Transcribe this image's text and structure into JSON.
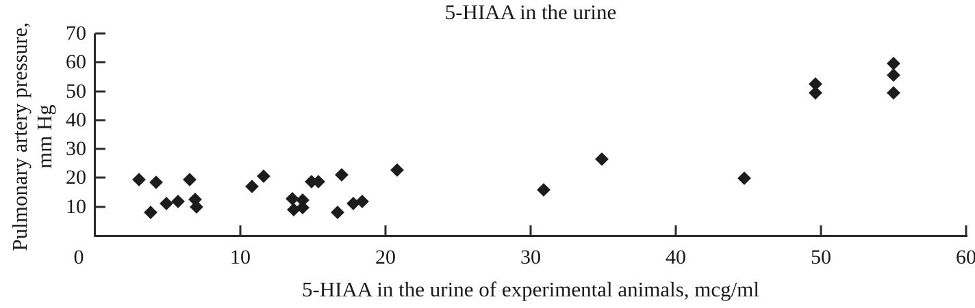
{
  "chart": {
    "title": "5-HIAA in the urine",
    "xlabel": "5-HIAA in the urine of experimental animals, mcg/ml",
    "ylabel_lines": [
      "Pulmonary artery pressure,",
      "mm Hg"
    ]
  },
  "chart_data": {
    "type": "scatter",
    "title": "5-HIAA in the urine",
    "xlabel": "5-HIAA in the urine of experimental animals, mcg/ml",
    "ylabel": "Pulmonary artery pressure, mm Hg",
    "xlim": [
      0,
      60
    ],
    "ylim": [
      0,
      70
    ],
    "xticks": [
      0,
      10,
      20,
      30,
      40,
      50,
      60
    ],
    "yticks": [
      10,
      20,
      30,
      40,
      50,
      60,
      70
    ],
    "grid": false,
    "legend": null,
    "marker": "diamond",
    "marker_color": "#1c1c1c",
    "points": [
      [
        3.0,
        19.5
      ],
      [
        4.2,
        18.5
      ],
      [
        3.8,
        8.0
      ],
      [
        4.9,
        11.0
      ],
      [
        5.7,
        11.8
      ],
      [
        6.5,
        19.3
      ],
      [
        6.9,
        12.5
      ],
      [
        7.0,
        10.0
      ],
      [
        10.8,
        17.0
      ],
      [
        11.6,
        20.5
      ],
      [
        13.6,
        12.7
      ],
      [
        14.3,
        12.3
      ],
      [
        13.7,
        9.0
      ],
      [
        14.3,
        9.6
      ],
      [
        14.9,
        18.8
      ],
      [
        15.4,
        18.8
      ],
      [
        17.0,
        21.0
      ],
      [
        16.7,
        8.0
      ],
      [
        17.8,
        11.0
      ],
      [
        18.4,
        11.8
      ],
      [
        20.8,
        22.6
      ],
      [
        30.9,
        15.8
      ],
      [
        34.9,
        26.5
      ],
      [
        44.7,
        19.8
      ],
      [
        49.6,
        52.4
      ],
      [
        49.6,
        49.4
      ],
      [
        55.0,
        59.5
      ],
      [
        55.0,
        55.5
      ],
      [
        55.0,
        49.5
      ]
    ]
  }
}
